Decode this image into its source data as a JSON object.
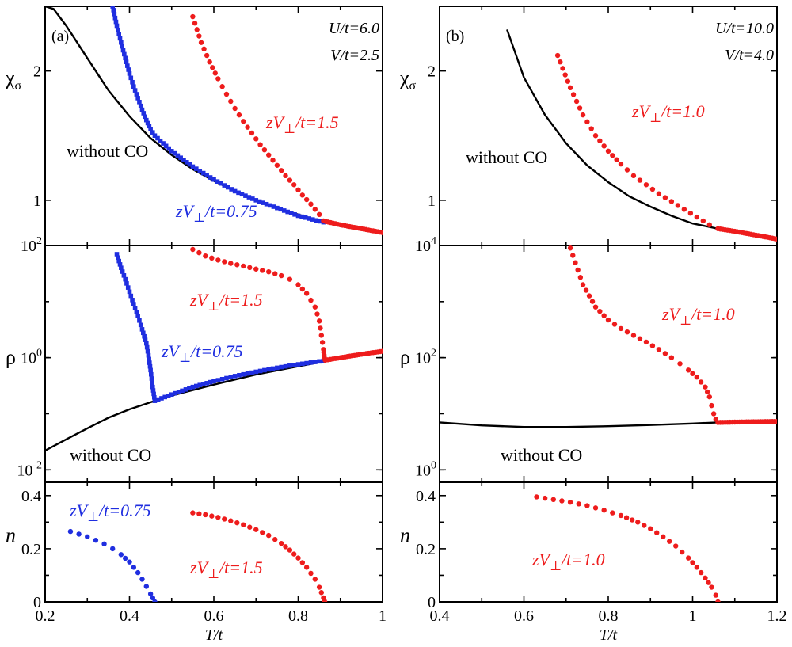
{
  "colors": {
    "blue": "#1f2ee0",
    "red": "#ee1c1c",
    "black": "#000000"
  },
  "chart_data": [
    {
      "type": "scatter",
      "panel": "a",
      "label": "(a)",
      "params": [
        "U/t=6.0",
        "V/t=2.5"
      ],
      "xlim": [
        0.2,
        1.0
      ],
      "xticks": [
        "0.2",
        "0.4",
        "0.6",
        "0.8",
        "1"
      ],
      "xlabel": "T/t",
      "rows": [
        {
          "key": "chi",
          "scale": "linear",
          "ylim": [
            0.65,
            2.5
          ],
          "ytick_labels": [
            "1",
            "2"
          ],
          "ylabel": "χσ",
          "annotations": [
            {
              "text": "without CO",
              "color": "black"
            },
            {
              "text": "zV⊥/t=1.5",
              "color": "red"
            },
            {
              "text": "zV⊥/t=0.75",
              "color": "blue"
            }
          ],
          "series": [
            {
              "name": "without CO",
              "color": "black",
              "style": "line",
              "x": [
                0.2,
                0.22,
                0.25,
                0.3,
                0.35,
                0.4,
                0.45,
                0.5,
                0.55,
                0.6,
                0.65,
                0.7,
                0.75,
                0.8,
                0.86,
                0.9,
                0.95,
                1.0
              ],
              "y": [
                2.5,
                2.48,
                2.35,
                2.1,
                1.85,
                1.65,
                1.48,
                1.35,
                1.24,
                1.15,
                1.07,
                1.0,
                0.94,
                0.89,
                0.83,
                0.8,
                0.77,
                0.75
              ]
            },
            {
              "name": "zV⊥/t=0.75",
              "color": "blue",
              "style": "square",
              "x": [
                0.36,
                0.37,
                0.38,
                0.39,
                0.4,
                0.41,
                0.42,
                0.43,
                0.44,
                0.45,
                0.46,
                0.5,
                0.55,
                0.6,
                0.65,
                0.7,
                0.75,
                0.8,
                0.86
              ],
              "y": [
                2.5,
                2.35,
                2.22,
                2.1,
                1.98,
                1.88,
                1.79,
                1.7,
                1.62,
                1.55,
                1.5,
                1.38,
                1.26,
                1.16,
                1.07,
                1.0,
                0.94,
                0.88,
                0.83
              ]
            },
            {
              "name": "zV⊥/t=1.5",
              "color": "red",
              "style": "circle",
              "x": [
                0.55,
                0.57,
                0.59,
                0.61,
                0.63,
                0.65,
                0.67,
                0.69,
                0.71,
                0.73,
                0.75,
                0.77,
                0.79,
                0.81,
                0.83,
                0.85,
                0.86,
                0.9,
                0.95,
                1.0
              ],
              "y": [
                2.42,
                2.22,
                2.07,
                1.94,
                1.82,
                1.71,
                1.61,
                1.52,
                1.43,
                1.35,
                1.27,
                1.19,
                1.12,
                1.04,
                0.97,
                0.89,
                0.84,
                0.81,
                0.78,
                0.75
              ]
            }
          ]
        },
        {
          "key": "rho",
          "scale": "log",
          "ylim": [
            0.006,
            100
          ],
          "ytick_labels": [
            "10^-2",
            "10^0",
            "10^2"
          ],
          "ylabel": "ρ",
          "annotations": [
            {
              "text": "zV⊥/t=1.5",
              "color": "red"
            },
            {
              "text": "zV⊥/t=0.75",
              "color": "blue"
            },
            {
              "text": "without CO",
              "color": "black"
            }
          ],
          "series": [
            {
              "name": "without CO",
              "color": "black",
              "style": "line",
              "x": [
                0.2,
                0.25,
                0.3,
                0.35,
                0.4,
                0.46,
                0.5,
                0.6,
                0.7,
                0.8,
                0.86,
                0.9,
                1.0
              ],
              "y": [
                0.022,
                0.035,
                0.055,
                0.085,
                0.12,
                0.17,
                0.21,
                0.33,
                0.5,
                0.7,
                0.85,
                1.0,
                1.3
              ]
            },
            {
              "name": "zV⊥/t=0.75",
              "color": "blue",
              "style": "square",
              "x": [
                0.37,
                0.38,
                0.39,
                0.4,
                0.41,
                0.42,
                0.43,
                0.44,
                0.445,
                0.45,
                0.455,
                0.46,
                0.5,
                0.55,
                0.6,
                0.65,
                0.7,
                0.75,
                0.8,
                0.86
              ],
              "y": [
                70,
                40,
                25,
                15,
                9,
                5.5,
                3.2,
                1.8,
                1.1,
                0.6,
                0.3,
                0.17,
                0.22,
                0.3,
                0.38,
                0.47,
                0.56,
                0.66,
                0.76,
                0.88
              ]
            },
            {
              "name": "zV⊥/t=1.5",
              "color": "red",
              "style": "circle",
              "x": [
                0.55,
                0.58,
                0.61,
                0.64,
                0.67,
                0.7,
                0.73,
                0.76,
                0.78,
                0.8,
                0.82,
                0.84,
                0.85,
                0.855,
                0.86,
                0.862,
                0.864,
                0.9,
                0.95,
                1.0
              ],
              "y": [
                85,
                65,
                55,
                48,
                43,
                38,
                34,
                29,
                25,
                20,
                14,
                8,
                4.5,
                2.5,
                1.4,
                1.0,
                0.9,
                1.0,
                1.15,
                1.3
              ]
            }
          ]
        },
        {
          "key": "n",
          "scale": "linear",
          "ylim": [
            0,
            0.45
          ],
          "ytick_labels": [
            "0",
            "0.2",
            "0.4"
          ],
          "ylabel": "n",
          "annotations": [
            {
              "text": "zV⊥/t=0.75",
              "color": "blue"
            },
            {
              "text": "zV⊥/t=1.5",
              "color": "red"
            }
          ],
          "series": [
            {
              "name": "zV⊥/t=0.75",
              "color": "blue",
              "style": "circle",
              "x": [
                0.26,
                0.28,
                0.3,
                0.32,
                0.34,
                0.36,
                0.38,
                0.4,
                0.42,
                0.43,
                0.44,
                0.45,
                0.455,
                0.46
              ],
              "y": [
                0.265,
                0.255,
                0.245,
                0.232,
                0.218,
                0.2,
                0.178,
                0.15,
                0.11,
                0.085,
                0.058,
                0.03,
                0.015,
                0.0
              ]
            },
            {
              "name": "zV⊥/t=1.5",
              "color": "red",
              "style": "circle",
              "x": [
                0.55,
                0.58,
                0.61,
                0.64,
                0.67,
                0.7,
                0.73,
                0.76,
                0.78,
                0.8,
                0.82,
                0.84,
                0.85,
                0.855,
                0.86,
                0.863
              ],
              "y": [
                0.335,
                0.328,
                0.318,
                0.305,
                0.29,
                0.272,
                0.25,
                0.22,
                0.195,
                0.165,
                0.13,
                0.085,
                0.055,
                0.035,
                0.015,
                0.0
              ]
            }
          ]
        }
      ]
    },
    {
      "type": "scatter",
      "panel": "b",
      "label": "(b)",
      "params": [
        "U/t=10.0",
        "V/t=4.0"
      ],
      "xlim": [
        0.4,
        1.2
      ],
      "xticks": [
        "0.4",
        "0.6",
        "0.8",
        "1",
        "1.2"
      ],
      "xlabel": "T/t",
      "rows": [
        {
          "key": "chi",
          "scale": "linear",
          "ylim": [
            0.65,
            2.5
          ],
          "ytick_labels": [
            "1",
            "2"
          ],
          "ylabel": "χσ",
          "annotations": [
            {
              "text": "zV⊥/t=1.0",
              "color": "red"
            },
            {
              "text": "without CO",
              "color": "black"
            }
          ],
          "series": [
            {
              "name": "without CO",
              "color": "black",
              "style": "line",
              "x": [
                0.56,
                0.6,
                0.65,
                0.7,
                0.75,
                0.8,
                0.85,
                0.9,
                0.95,
                1.0,
                1.06,
                1.1,
                1.15,
                1.2
              ],
              "y": [
                2.32,
                1.95,
                1.66,
                1.44,
                1.27,
                1.14,
                1.03,
                0.95,
                0.88,
                0.82,
                0.78,
                0.76,
                0.73,
                0.7
              ]
            },
            {
              "name": "zV⊥/t=1.0",
              "color": "red",
              "style": "circle",
              "x": [
                0.68,
                0.71,
                0.74,
                0.77,
                0.8,
                0.83,
                0.86,
                0.89,
                0.92,
                0.95,
                0.98,
                1.01,
                1.04,
                1.06,
                1.1,
                1.15,
                1.2
              ],
              "y": [
                2.12,
                1.87,
                1.66,
                1.5,
                1.38,
                1.28,
                1.19,
                1.12,
                1.05,
                0.99,
                0.93,
                0.87,
                0.81,
                0.78,
                0.76,
                0.73,
                0.7
              ]
            }
          ]
        },
        {
          "key": "rho",
          "scale": "log",
          "ylim": [
            0.6,
            10000
          ],
          "ytick_labels": [
            "10^0",
            "10^2",
            "10^4"
          ],
          "ylabel": "ρ",
          "annotations": [
            {
              "text": "zV⊥/t=1.0",
              "color": "red"
            },
            {
              "text": "without CO",
              "color": "black"
            }
          ],
          "series": [
            {
              "name": "without CO",
              "color": "black",
              "style": "line",
              "x": [
                0.4,
                0.5,
                0.6,
                0.7,
                0.8,
                0.9,
                1.0,
                1.06,
                1.1,
                1.2
              ],
              "y": [
                7.0,
                6.2,
                5.8,
                5.8,
                6.0,
                6.3,
                6.7,
                7.0,
                7.1,
                7.3
              ]
            },
            {
              "name": "zV⊥/t=1.0",
              "color": "red",
              "style": "circle",
              "x": [
                0.71,
                0.74,
                0.77,
                0.8,
                0.83,
                0.86,
                0.89,
                0.92,
                0.95,
                0.97,
                0.99,
                1.01,
                1.03,
                1.04,
                1.045,
                1.05,
                1.055,
                1.06,
                1.1,
                1.15,
                1.2
              ],
              "y": [
                9000,
                2000,
                800,
                470,
                330,
                250,
                190,
                140,
                100,
                78,
                60,
                45,
                30,
                20,
                14,
                10,
                8,
                7,
                7.1,
                7.2,
                7.3
              ]
            }
          ]
        },
        {
          "key": "n",
          "scale": "linear",
          "ylim": [
            0,
            0.45
          ],
          "ytick_labels": [
            "0",
            "0.2",
            "0.4"
          ],
          "ylabel": "n",
          "annotations": [
            {
              "text": "zV⊥/t=1.0",
              "color": "red"
            }
          ],
          "series": [
            {
              "name": "zV⊥/t=1.0",
              "color": "red",
              "style": "circle",
              "x": [
                0.63,
                0.67,
                0.71,
                0.75,
                0.79,
                0.83,
                0.87,
                0.9,
                0.93,
                0.96,
                0.99,
                1.01,
                1.03,
                1.045,
                1.055,
                1.06
              ],
              "y": [
                0.395,
                0.385,
                0.375,
                0.362,
                0.345,
                0.325,
                0.3,
                0.275,
                0.245,
                0.21,
                0.165,
                0.13,
                0.09,
                0.055,
                0.025,
                0.0
              ]
            }
          ]
        }
      ]
    }
  ]
}
